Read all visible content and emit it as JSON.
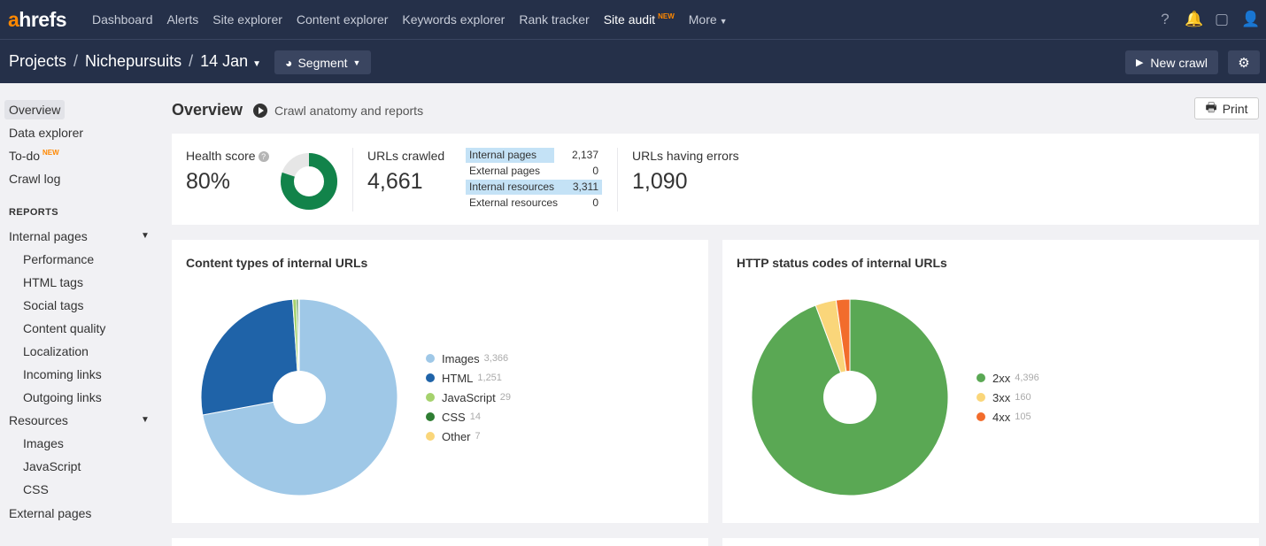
{
  "topnav": {
    "logo_a": "a",
    "logo_rest": "hrefs",
    "links": [
      "Dashboard",
      "Alerts",
      "Site explorer",
      "Content explorer",
      "Keywords explorer",
      "Rank tracker"
    ],
    "site_audit": "Site audit",
    "new_badge": "NEW",
    "more": "More",
    "icons": [
      "help-icon",
      "bell-icon",
      "window-icon",
      "user-icon"
    ]
  },
  "subheader": {
    "projects": "Projects",
    "sep": "/",
    "project": "Nichepursuits",
    "date": "14 Jan",
    "segment": "Segment",
    "new_crawl": "New crawl"
  },
  "sidebar": {
    "overview": "Overview",
    "data_explorer": "Data explorer",
    "todo": "To-do",
    "todo_badge": "NEW",
    "crawl_log": "Crawl log",
    "reports_heading": "REPORTS",
    "internal_pages": "Internal pages",
    "internal_children": [
      "Performance",
      "HTML tags",
      "Social tags",
      "Content quality",
      "Localization",
      "Incoming links",
      "Outgoing links"
    ],
    "resources": "Resources",
    "resources_children": [
      "Images",
      "JavaScript",
      "CSS"
    ],
    "external_pages": "External pages"
  },
  "main": {
    "title": "Overview",
    "subtitle": "Crawl anatomy and reports",
    "print": "Print"
  },
  "stats": {
    "health_label": "Health score",
    "health_value": "80%",
    "health_fraction": 0.8,
    "crawled_label": "URLs crawled",
    "crawled_value": "4,661",
    "breakdown": [
      {
        "label": "Internal pages",
        "value": "2,137",
        "highlight": true
      },
      {
        "label": "External pages",
        "value": "0",
        "highlight": false
      },
      {
        "label": "Internal resources",
        "value": "3,311",
        "highlight": true
      },
      {
        "label": "External resources",
        "value": "0",
        "highlight": false
      }
    ],
    "errors_label": "URLs having errors",
    "errors_value": "1,090"
  },
  "chart_data": [
    {
      "type": "pie",
      "title": "Content types of internal URLs",
      "categories": [
        "Images",
        "HTML",
        "JavaScript",
        "CSS",
        "Other"
      ],
      "values": [
        3366,
        1251,
        29,
        14,
        7
      ],
      "labels": [
        "3,366",
        "1,251",
        "29",
        "14",
        "7"
      ],
      "colors": [
        "#9fc8e7",
        "#1f63a8",
        "#a5d26d",
        "#2e7d32",
        "#fad67a"
      ],
      "legend": "right"
    },
    {
      "type": "pie",
      "title": "HTTP status codes of internal URLs",
      "categories": [
        "2xx",
        "3xx",
        "4xx"
      ],
      "values": [
        4396,
        160,
        105
      ],
      "labels": [
        "4,396",
        "160",
        "105"
      ],
      "colors": [
        "#5aa854",
        "#fad67a",
        "#f26c2c"
      ],
      "legend": "right"
    }
  ]
}
